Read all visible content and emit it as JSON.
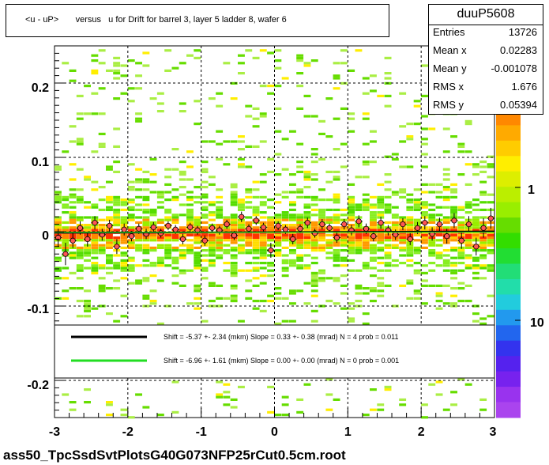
{
  "title": "<u - uP>       versus   u for Drift for barrel 3, layer 5 ladder 8, wafer 6",
  "stats": {
    "name": "duuP5608",
    "rows": [
      {
        "label": "Entries",
        "value": "13726"
      },
      {
        "label": "Mean x",
        "value": "0.02283"
      },
      {
        "label": "Mean y",
        "value": "-0.001078"
      },
      {
        "label": "RMS x",
        "value": "1.676"
      },
      {
        "label": "RMS y",
        "value": "0.05394"
      }
    ]
  },
  "legend": [
    {
      "text": "Shift =    -5.37 +- 2.34 (mkm) Slope =     0.33 +- 0.38 (mrad)  N = 4 prob = 0.011",
      "color": "#000000"
    },
    {
      "text": "Shift =    -6.96 +- 1.61 (mkm) Slope =     0.00 +- 0.00 (mrad)  N = 0 prob = 0.001",
      "color": "#22dd22"
    }
  ],
  "footer": "ass50_TpcSsdSvtPlotsG40G073NFP25rCut0.5cm.root",
  "colors": {
    "profile_marker": "#ff5555",
    "fit_line": "#000000",
    "fit_line2": "#22dd22"
  },
  "chart_data": {
    "type": "heatmap",
    "xlim": [
      -3,
      3
    ],
    "ylim": [
      -0.25,
      0.25
    ],
    "x_ticks": [
      "-3",
      "-2",
      "-1",
      "0",
      "1",
      "2",
      "3"
    ],
    "y_ticks": [
      "-0.2",
      "-0.1",
      "0",
      "0.1",
      "0.2"
    ],
    "y_tick_values": [
      -0.2,
      -0.1,
      0,
      0.1,
      0.2
    ],
    "colorbar_labels": [
      "1",
      "10"
    ],
    "grid": true,
    "fit_lines": [
      {
        "shift_mkm": -5.37,
        "slope_mrad": 0.33
      },
      {
        "shift_mkm": -6.96,
        "slope_mrad": 0.0
      }
    ],
    "profile": {
      "x": [
        -2.95,
        -2.85,
        -2.75,
        -2.65,
        -2.55,
        -2.45,
        -2.35,
        -2.25,
        -2.15,
        -2.05,
        -1.95,
        -1.85,
        -1.75,
        -1.65,
        -1.55,
        -1.45,
        -1.35,
        -1.25,
        -1.15,
        -1.05,
        -0.95,
        -0.85,
        -0.75,
        -0.65,
        -0.55,
        -0.45,
        -0.35,
        -0.25,
        -0.15,
        -0.05,
        0.05,
        0.15,
        0.25,
        0.35,
        0.45,
        0.55,
        0.65,
        0.75,
        0.85,
        0.95,
        1.05,
        1.15,
        1.25,
        1.35,
        1.45,
        1.55,
        1.65,
        1.75,
        1.85,
        1.95,
        2.05,
        2.15,
        2.25,
        2.35,
        2.45,
        2.55,
        2.65,
        2.75,
        2.85,
        2.95
      ],
      "y": [
        -0.008,
        -0.03,
        -0.012,
        0.005,
        -0.01,
        0.012,
        -0.004,
        0.008,
        -0.02,
        0.003,
        -0.006,
        0.004,
        -0.003,
        0.006,
        -0.002,
        0.008,
        0.003,
        -0.01,
        0.006,
        0.002,
        -0.012,
        0.005,
        0.002,
        0.01,
        -0.005,
        0.02,
        0.004,
        0.015,
        0.006,
        -0.025,
        0.008,
        0.003,
        -0.01,
        0.004,
        0.012,
        -0.002,
        0.01,
        0.005,
        -0.008,
        0.01,
        0.002,
        0.014,
        0.004,
        -0.006,
        0.012,
        0.002,
        -0.004,
        0.01,
        -0.01,
        0.005,
        0.012,
        -0.003,
        0.01,
        -0.006,
        0.015,
        -0.012,
        0.01,
        -0.02,
        0.005,
        0.018
      ],
      "err": [
        0.012,
        0.015,
        0.01,
        0.009,
        0.01,
        0.009,
        0.008,
        0.008,
        0.01,
        0.008,
        0.007,
        0.007,
        0.007,
        0.007,
        0.006,
        0.006,
        0.006,
        0.007,
        0.006,
        0.006,
        0.007,
        0.006,
        0.006,
        0.006,
        0.006,
        0.007,
        0.006,
        0.006,
        0.006,
        0.01,
        0.006,
        0.006,
        0.007,
        0.006,
        0.007,
        0.006,
        0.007,
        0.006,
        0.007,
        0.007,
        0.007,
        0.008,
        0.007,
        0.007,
        0.008,
        0.007,
        0.007,
        0.008,
        0.008,
        0.008,
        0.009,
        0.009,
        0.009,
        0.01,
        0.01,
        0.011,
        0.011,
        0.012,
        0.013,
        0.014
      ]
    }
  }
}
